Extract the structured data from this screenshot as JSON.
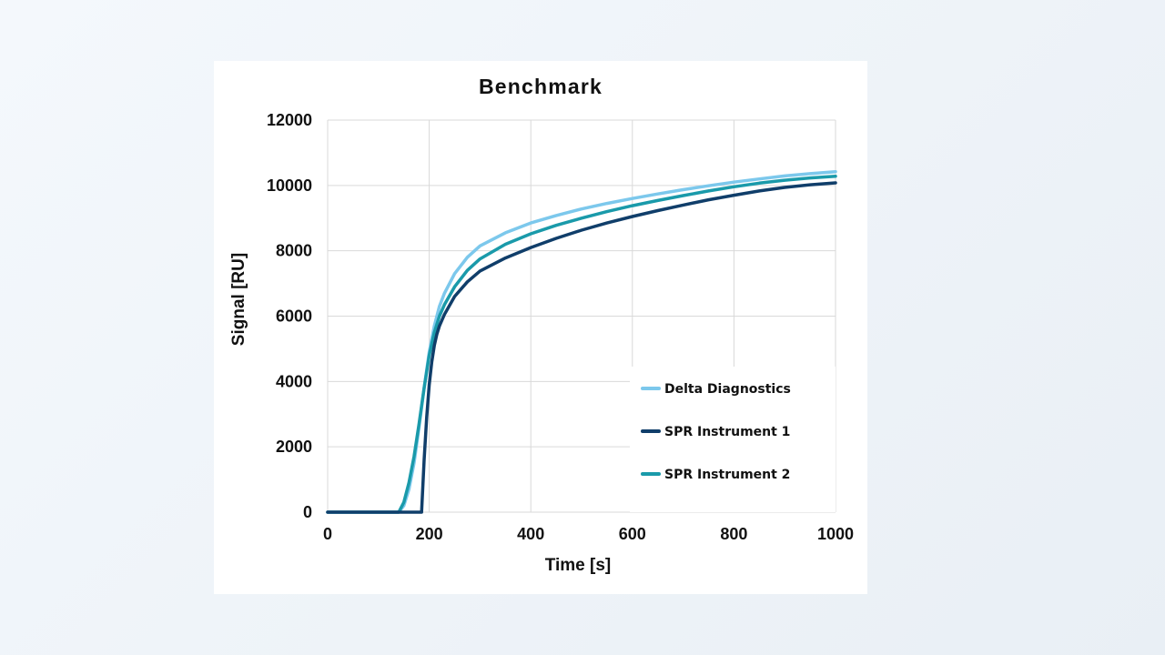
{
  "chart_data": {
    "type": "line",
    "title": "Benchmark",
    "xlabel": "Time [s]",
    "ylabel": "Signal [RU]",
    "xlim": [
      0,
      1000
    ],
    "ylim": [
      0,
      12000
    ],
    "xticks": [
      "0",
      "200",
      "400",
      "600",
      "800",
      "1000"
    ],
    "yticks": [
      "0",
      "2000",
      "4000",
      "6000",
      "8000",
      "10000",
      "12000"
    ],
    "grid": true,
    "legend_position": "bottom-right",
    "series": [
      {
        "name": "Delta Diagnostics",
        "color": "#7cc8ec",
        "x": [
          0,
          140,
          150,
          160,
          170,
          180,
          190,
          200,
          210,
          220,
          230,
          250,
          275,
          300,
          350,
          400,
          450,
          500,
          550,
          600,
          650,
          700,
          750,
          800,
          850,
          900,
          950,
          1000
        ],
        "y": [
          0,
          0,
          200,
          700,
          1500,
          2600,
          3800,
          4900,
          5700,
          6300,
          6700,
          7300,
          7800,
          8150,
          8550,
          8850,
          9080,
          9280,
          9450,
          9600,
          9740,
          9870,
          9990,
          10100,
          10200,
          10290,
          10360,
          10420
        ]
      },
      {
        "name": "SPR Instrument 1",
        "color": "#103e6a",
        "x": [
          0,
          185,
          190,
          195,
          200,
          205,
          210,
          215,
          220,
          230,
          250,
          275,
          300,
          350,
          400,
          450,
          500,
          550,
          600,
          650,
          700,
          750,
          800,
          850,
          900,
          950,
          1000
        ],
        "y": [
          0,
          0,
          1600,
          2900,
          3900,
          4600,
          5100,
          5450,
          5700,
          6050,
          6600,
          7050,
          7380,
          7780,
          8100,
          8380,
          8630,
          8850,
          9050,
          9230,
          9400,
          9560,
          9700,
          9830,
          9940,
          10020,
          10080
        ]
      },
      {
        "name": "SPR Instrument 2",
        "color": "#1a9aaa",
        "x": [
          0,
          140,
          150,
          160,
          170,
          180,
          190,
          200,
          210,
          220,
          230,
          250,
          275,
          300,
          350,
          400,
          450,
          500,
          550,
          600,
          650,
          700,
          750,
          800,
          850,
          900,
          950,
          1000
        ],
        "y": [
          0,
          0,
          300,
          900,
          1700,
          2700,
          3800,
          4800,
          5500,
          6000,
          6350,
          6900,
          7400,
          7750,
          8200,
          8520,
          8780,
          9000,
          9200,
          9380,
          9540,
          9690,
          9830,
          9960,
          10070,
          10160,
          10230,
          10280
        ]
      }
    ]
  }
}
